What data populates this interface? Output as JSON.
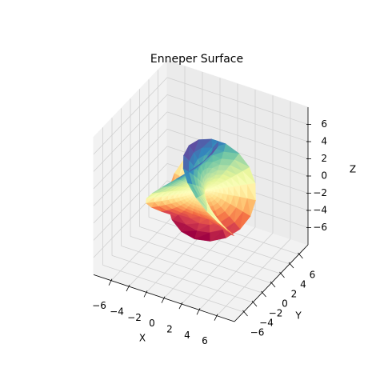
{
  "chart_data": {
    "type": "surface3d",
    "title": "Enneper Surface",
    "xlabel": "X",
    "ylabel": "Y",
    "zlabel": "Z",
    "xlim": [
      -8,
      8
    ],
    "ylim": [
      -8,
      8
    ],
    "zlim": [
      -8,
      8
    ],
    "xticks": [
      {
        "value": -6,
        "label": "−6"
      },
      {
        "value": -4,
        "label": "−4"
      },
      {
        "value": -2,
        "label": "−2"
      },
      0,
      2,
      4,
      6
    ],
    "yticks": [
      {
        "value": -6,
        "label": "−6"
      },
      {
        "value": -4,
        "label": "−4"
      },
      {
        "value": -2,
        "label": "−2"
      },
      0,
      2,
      4,
      6
    ],
    "zticks": [
      {
        "value": -6,
        "label": "−6"
      },
      {
        "value": -4,
        "label": "−4"
      },
      {
        "value": -2,
        "label": "−2"
      },
      0,
      2,
      4,
      6
    ],
    "grid": true,
    "colormap": "Spectral"
  }
}
